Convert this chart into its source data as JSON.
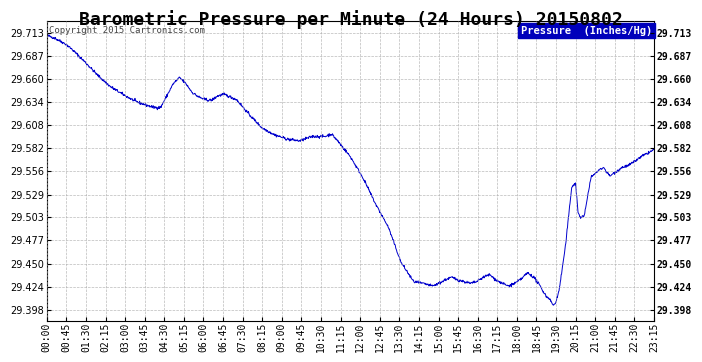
{
  "title": "Barometric Pressure per Minute (24 Hours) 20150802",
  "copyright": "Copyright 2015 Cartronics.com",
  "legend_label": "Pressure  (Inches/Hg)",
  "yticks": [
    29.398,
    29.424,
    29.45,
    29.477,
    29.503,
    29.529,
    29.556,
    29.582,
    29.608,
    29.634,
    29.66,
    29.687,
    29.713
  ],
  "ymin": 29.385,
  "ymax": 29.726,
  "line_color": "#0000cc",
  "background_color": "#ffffff",
  "grid_color": "#aaaaaa",
  "title_fontsize": 13,
  "tick_fontsize": 7,
  "copyright_fontsize": 6.5,
  "legend_fontsize": 7.5,
  "xtick_labels": [
    "00:00",
    "00:45",
    "01:30",
    "02:15",
    "03:00",
    "03:45",
    "04:30",
    "05:15",
    "06:00",
    "06:45",
    "07:30",
    "08:15",
    "09:00",
    "09:45",
    "10:30",
    "11:15",
    "12:00",
    "12:45",
    "13:30",
    "14:15",
    "15:00",
    "15:45",
    "16:30",
    "17:15",
    "18:00",
    "18:45",
    "19:30",
    "20:15",
    "21:00",
    "21:45",
    "22:30",
    "23:15"
  ],
  "n_points": 1440,
  "waypoints": [
    [
      0.0,
      29.71
    ],
    [
      0.3,
      29.707
    ],
    [
      0.75,
      29.7
    ],
    [
      1.0,
      29.694
    ],
    [
      1.5,
      29.68
    ],
    [
      2.0,
      29.665
    ],
    [
      2.5,
      29.652
    ],
    [
      3.0,
      29.643
    ],
    [
      3.5,
      29.635
    ],
    [
      4.0,
      29.63
    ],
    [
      4.25,
      29.628
    ],
    [
      4.5,
      29.628
    ],
    [
      5.0,
      29.655
    ],
    [
      5.25,
      29.662
    ],
    [
      5.5,
      29.655
    ],
    [
      5.75,
      29.645
    ],
    [
      6.0,
      29.64
    ],
    [
      6.25,
      29.637
    ],
    [
      6.5,
      29.636
    ],
    [
      6.75,
      29.641
    ],
    [
      7.0,
      29.643
    ],
    [
      7.25,
      29.64
    ],
    [
      7.5,
      29.637
    ],
    [
      8.0,
      29.62
    ],
    [
      8.5,
      29.605
    ],
    [
      9.0,
      29.597
    ],
    [
      9.5,
      29.592
    ],
    [
      10.0,
      29.59
    ],
    [
      10.5,
      29.595
    ],
    [
      11.0,
      29.595
    ],
    [
      11.25,
      29.598
    ],
    [
      11.5,
      29.59
    ],
    [
      12.0,
      29.572
    ],
    [
      12.5,
      29.548
    ],
    [
      13.0,
      29.518
    ],
    [
      13.5,
      29.492
    ],
    [
      14.0,
      29.452
    ],
    [
      14.5,
      29.43
    ],
    [
      15.0,
      29.427
    ],
    [
      15.25,
      29.425
    ],
    [
      15.5,
      29.428
    ],
    [
      15.75,
      29.432
    ],
    [
      16.0,
      29.435
    ],
    [
      16.25,
      29.432
    ],
    [
      16.5,
      29.43
    ],
    [
      16.75,
      29.428
    ],
    [
      17.0,
      29.43
    ],
    [
      17.25,
      29.435
    ],
    [
      17.5,
      29.438
    ],
    [
      17.75,
      29.432
    ],
    [
      18.0,
      29.428
    ],
    [
      18.25,
      29.425
    ],
    [
      18.5,
      29.428
    ],
    [
      18.75,
      29.433
    ],
    [
      19.0,
      29.44
    ],
    [
      19.25,
      29.435
    ],
    [
      19.5,
      29.425
    ],
    [
      19.6,
      29.42
    ],
    [
      19.75,
      29.413
    ],
    [
      19.9,
      29.41
    ],
    [
      20.0,
      29.403
    ],
    [
      20.1,
      29.405
    ],
    [
      20.25,
      29.42
    ],
    [
      20.5,
      29.47
    ],
    [
      20.75,
      29.538
    ],
    [
      20.9,
      29.542
    ],
    [
      21.0,
      29.508
    ],
    [
      21.1,
      29.503
    ],
    [
      21.25,
      29.505
    ],
    [
      21.5,
      29.548
    ],
    [
      21.75,
      29.555
    ],
    [
      22.0,
      29.56
    ],
    [
      22.25,
      29.55
    ],
    [
      22.5,
      29.555
    ],
    [
      22.75,
      29.56
    ],
    [
      23.0,
      29.562
    ],
    [
      23.25,
      29.567
    ],
    [
      23.5,
      29.572
    ],
    [
      23.75,
      29.576
    ],
    [
      24.0,
      29.58
    ]
  ]
}
